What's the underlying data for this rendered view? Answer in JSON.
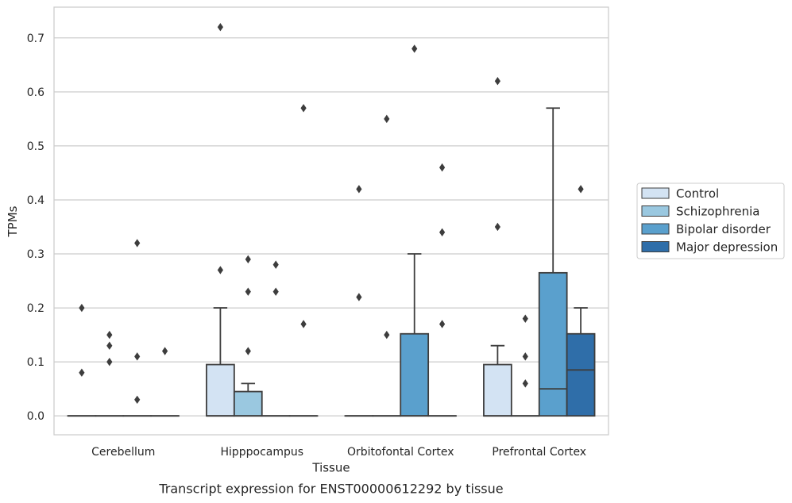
{
  "chart_data": {
    "type": "box",
    "title": "",
    "xlabel": "Tissue",
    "ylabel": "TPMs",
    "caption": "Transcript expression for ENST00000612292 by tissue",
    "ylim": [
      -0.035,
      0.757
    ],
    "yticks": [
      0.0,
      0.1,
      0.2,
      0.3,
      0.4,
      0.5,
      0.6,
      0.7
    ],
    "ytick_labels": [
      "0.0",
      "0.1",
      "0.2",
      "0.3",
      "0.4",
      "0.5",
      "0.6",
      "0.7"
    ],
    "grid": "horizontal",
    "legend_position": "outside-right",
    "categories": [
      "Cerebellum",
      "Hipppocampus",
      "Orbitofontal Cortex",
      "Prefrontal Cortex"
    ],
    "series": [
      {
        "name": "Control",
        "color": "#d3e3f3",
        "boxes": [
          {
            "q1": 0,
            "median": 0,
            "q3": 0,
            "whisker_low": 0,
            "whisker_high": 0,
            "outliers": [
              0.2,
              0.08
            ]
          },
          {
            "q1": 0,
            "median": 0,
            "q3": 0.095,
            "whisker_low": 0,
            "whisker_high": 0.2,
            "outliers": [
              0.72,
              0.27
            ]
          },
          {
            "q1": 0,
            "median": 0,
            "q3": 0,
            "whisker_low": 0,
            "whisker_high": 0,
            "outliers": [
              0.42,
              0.22
            ]
          },
          {
            "q1": 0,
            "median": 0,
            "q3": 0.095,
            "whisker_low": 0,
            "whisker_high": 0.13,
            "outliers": [
              0.62,
              0.35
            ]
          }
        ]
      },
      {
        "name": "Schizophrenia",
        "color": "#9ac8e0",
        "boxes": [
          {
            "q1": 0,
            "median": 0,
            "q3": 0,
            "whisker_low": 0,
            "whisker_high": 0,
            "outliers": [
              0.15,
              0.13,
              0.1
            ]
          },
          {
            "q1": 0,
            "median": 0,
            "q3": 0.045,
            "whisker_low": 0,
            "whisker_high": 0.06,
            "outliers": [
              0.29,
              0.23,
              0.12
            ]
          },
          {
            "q1": 0,
            "median": 0,
            "q3": 0,
            "whisker_low": 0,
            "whisker_high": 0,
            "outliers": [
              0.55,
              0.15
            ]
          },
          {
            "q1": 0,
            "median": 0,
            "q3": 0,
            "whisker_low": 0,
            "whisker_high": 0,
            "outliers": [
              0.18,
              0.11,
              0.06
            ]
          }
        ]
      },
      {
        "name": "Bipolar disorder",
        "color": "#5aa0cd",
        "boxes": [
          {
            "q1": 0,
            "median": 0,
            "q3": 0,
            "whisker_low": 0,
            "whisker_high": 0,
            "outliers": [
              0.32,
              0.11,
              0.03
            ]
          },
          {
            "q1": 0,
            "median": 0,
            "q3": 0,
            "whisker_low": 0,
            "whisker_high": 0,
            "outliers": [
              0.28,
              0.23
            ]
          },
          {
            "q1": 0,
            "median": 0,
            "q3": 0.152,
            "whisker_low": 0,
            "whisker_high": 0.3,
            "outliers": [
              0.68
            ]
          },
          {
            "q1": 0,
            "median": 0.05,
            "q3": 0.265,
            "whisker_low": 0,
            "whisker_high": 0.57,
            "outliers": []
          }
        ]
      },
      {
        "name": "Major depression",
        "color": "#2f6ea9",
        "boxes": [
          {
            "q1": 0,
            "median": 0,
            "q3": 0,
            "whisker_low": 0,
            "whisker_high": 0,
            "outliers": [
              0.12
            ]
          },
          {
            "q1": 0,
            "median": 0,
            "q3": 0,
            "whisker_low": 0,
            "whisker_high": 0,
            "outliers": [
              0.57,
              0.17
            ]
          },
          {
            "q1": 0,
            "median": 0,
            "q3": 0,
            "whisker_low": 0,
            "whisker_high": 0,
            "outliers": [
              0.46,
              0.34,
              0.17
            ]
          },
          {
            "q1": 0,
            "median": 0.085,
            "q3": 0.152,
            "whisker_low": 0,
            "whisker_high": 0.2,
            "outliers": [
              0.42
            ]
          }
        ]
      }
    ]
  }
}
